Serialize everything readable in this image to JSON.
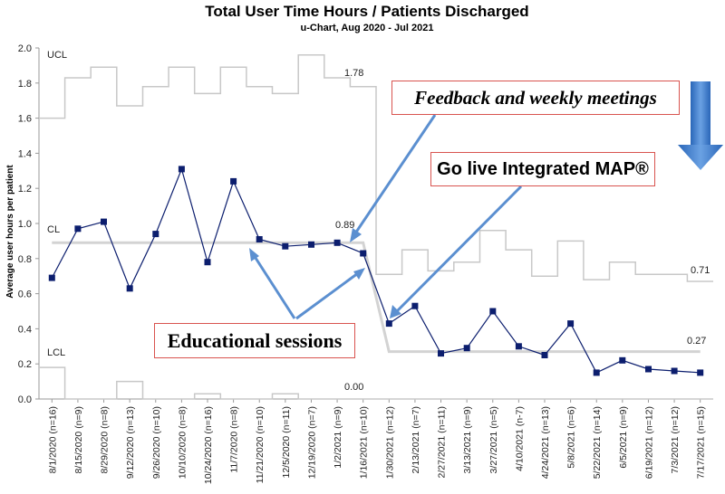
{
  "chart_data": {
    "type": "line",
    "title": "Total User Time Hours / Patients Discharged",
    "subtitle": "u-Chart, Aug 2020 - Jul 2021",
    "ylabel": "Average user hours per patient",
    "xlabel": "",
    "ylim": [
      0,
      2.0
    ],
    "yticks": [
      "0.0",
      "0.2",
      "0.4",
      "0.6",
      "0.8",
      "1.0",
      "1.2",
      "1.4",
      "1.6",
      "1.8",
      "2.0"
    ],
    "grid": false,
    "categories": [
      "8/1/2020 (n=16)",
      "8/15/2020 (n=9)",
      "8/29/2020 (n=8)",
      "9/12/2020 (n=13)",
      "9/26/2020 (n=10)",
      "10/10/2020 (n=8)",
      "10/24/2020 (n=16)",
      "11/7/2020 (n=8)",
      "11/21/2020 (n=10)",
      "12/5/2020 (n=11)",
      "12/19/2020 (n=7)",
      "1/2/2021 (n=9)",
      "1/16/2021 (n=10)",
      "1/30/2021 (n=12)",
      "2/13/2021 (n=7)",
      "2/27/2021 (n=11)",
      "3/13/2021 (n=9)",
      "3/27/2021 (n=5)",
      "4/10/2021 (n-7)",
      "4/24/2021 (n=13)",
      "5/8/2021 (n=6)",
      "5/22/2021 (n=14)",
      "6/5/2021 (n=9)",
      "6/19/2021 (n=12)",
      "7/3/2021 (n=12)",
      "7/17/2021 (n=15)"
    ],
    "series": [
      {
        "role": "data",
        "color": "#0c1e6e",
        "values": [
          0.69,
          0.97,
          1.01,
          0.63,
          0.94,
          1.31,
          0.78,
          1.24,
          0.91,
          0.87,
          0.88,
          0.89,
          0.83,
          0.43,
          0.53,
          0.26,
          0.29,
          0.5,
          0.3,
          0.25,
          0.43,
          0.15,
          0.22,
          0.17,
          0.16,
          0.15
        ]
      },
      {
        "role": "ucl",
        "color": "#c8c8c8",
        "values": [
          1.6,
          1.83,
          1.89,
          1.67,
          1.78,
          1.89,
          1.74,
          1.89,
          1.78,
          1.74,
          1.96,
          1.83,
          1.78,
          0.71,
          0.85,
          0.73,
          0.78,
          0.96,
          0.85,
          0.7,
          0.9,
          0.68,
          0.78,
          0.71,
          0.71,
          0.67
        ]
      },
      {
        "role": "lcl",
        "color": "#c8c8c8",
        "values": [
          0.18,
          0.0,
          0.0,
          0.1,
          0.0,
          0.0,
          0.03,
          0.0,
          0.0,
          0.03,
          0.0,
          0.0,
          0.0,
          0.0,
          0.0,
          0.0,
          0.0,
          0.0,
          0.0,
          0.0,
          0.0,
          0.0,
          0.0,
          0.0,
          0.0,
          0.0
        ]
      },
      {
        "role": "cl",
        "color": "#d3d3d3",
        "values": [
          0.89,
          0.89,
          0.89,
          0.89,
          0.89,
          0.89,
          0.89,
          0.89,
          0.89,
          0.89,
          0.89,
          0.89,
          0.89,
          0.27,
          0.27,
          0.27,
          0.27,
          0.27,
          0.27,
          0.27,
          0.27,
          0.27,
          0.27,
          0.27,
          0.27,
          0.27
        ]
      }
    ],
    "line_labels": {
      "ucl": "UCL",
      "cl": "CL",
      "lcl": "LCL"
    },
    "value_labels": {
      "ucl_before": "1.78",
      "cl_before": "0.89",
      "lcl_before": "0.00",
      "ucl_after": "0.71",
      "cl_after": "0.27"
    },
    "callouts": {
      "feedback": "Feedback and weekly meetings",
      "golive": "Go live Integrated MAP®",
      "education": "Educational sessions"
    },
    "accent_colors": {
      "callout_border": "#d9534f",
      "arrow": "#5b8fd0",
      "big_arrow": "#3f7fd0"
    }
  }
}
